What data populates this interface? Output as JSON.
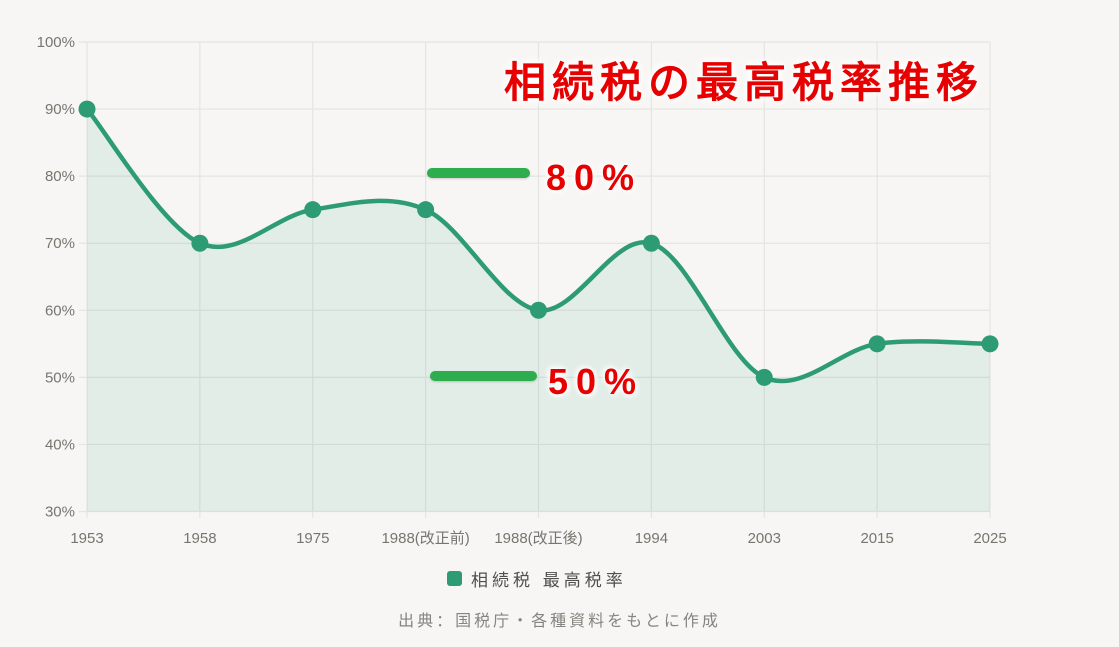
{
  "title": {
    "text": "相続税の最高税率推移",
    "color": "#e70000"
  },
  "annotations": [
    {
      "label": "80%",
      "value": 80,
      "bar_color": "#2ead4e",
      "text_color": "#e70000"
    },
    {
      "label": "50%",
      "value": 50,
      "bar_color": "#2ead4e",
      "text_color": "#e70000"
    }
  ],
  "legend": {
    "label": "相続税 最高税率",
    "marker_color": "#2e9c72"
  },
  "source": "出典：国税庁・各種資料をもとに作成",
  "chart_data": {
    "type": "area",
    "categories": [
      "1953",
      "1958",
      "1975",
      "1988(改正前)",
      "1988(改正後)",
      "1994",
      "2003",
      "2015",
      "2025"
    ],
    "series": [
      {
        "name": "相続税 最高税率",
        "values": [
          90,
          70,
          75,
          75,
          60,
          70,
          50,
          55,
          55
        ]
      }
    ],
    "title": "相続税の最高税率推移",
    "xlabel": "",
    "ylabel": "",
    "ylim": [
      30,
      100
    ],
    "yticks": [
      30,
      40,
      50,
      60,
      70,
      80,
      90,
      100
    ],
    "ytick_suffix": "%",
    "grid": true,
    "legend_position": "bottom",
    "line_color": "#2e9c72",
    "point_color": "#2e9c72",
    "fill_color": "rgba(46,156,114,0.10)",
    "background_color": "#f7f6f4",
    "grid_color": "#e4e4e0",
    "axis_label_color": "#76766f"
  }
}
